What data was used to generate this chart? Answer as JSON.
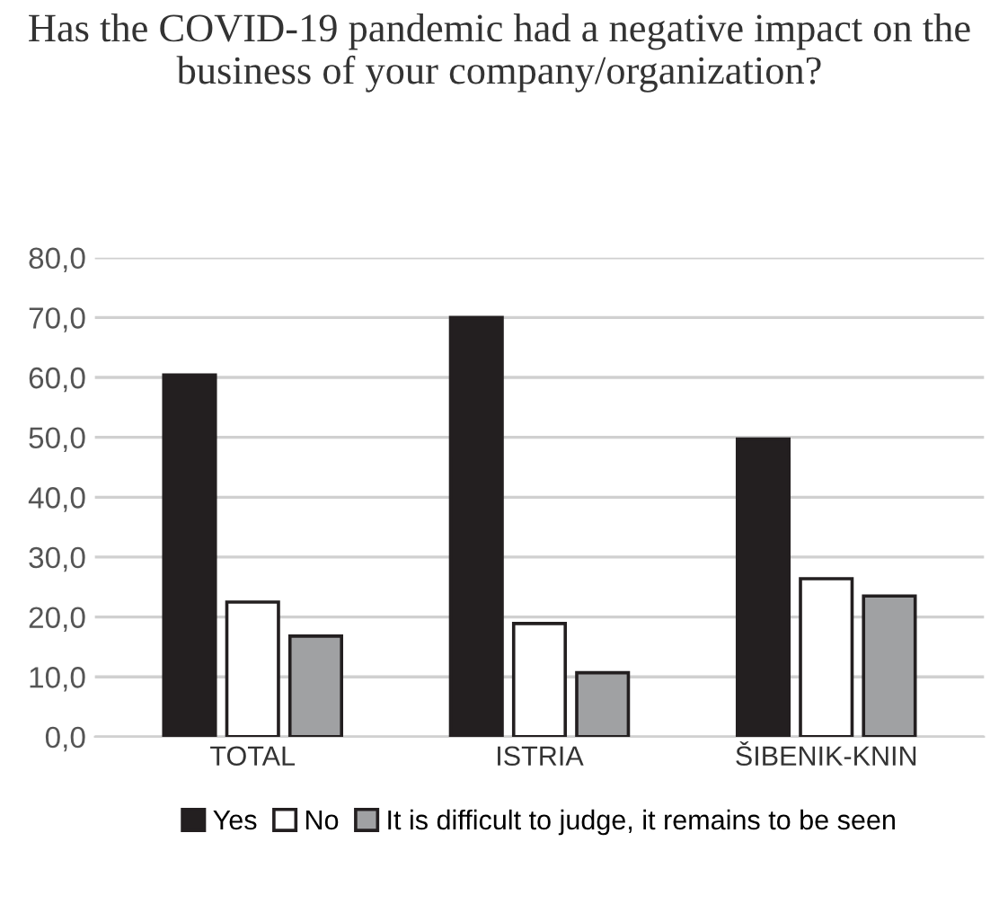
{
  "chart_data": {
    "type": "bar",
    "title": "Has the COVID-19 pandemic had a negative impact on the business of your company/organization?",
    "categories": [
      "TOTAL",
      "ISTRIA",
      "ŠIBENIK-KNIN"
    ],
    "series": [
      {
        "name": "Yes",
        "color": "#231f20",
        "values": [
          60.4,
          70.0,
          49.7
        ]
      },
      {
        "name": "No",
        "color": "#ffffff",
        "values": [
          22.5,
          18.9,
          26.4
        ]
      },
      {
        "name": "It is difficult to judge, it remains to be seen",
        "color": "#a0a1a3",
        "values": [
          16.8,
          10.7,
          23.5
        ]
      }
    ],
    "ylim": [
      0,
      80
    ],
    "yticks": [
      {
        "value": 0,
        "label": "0,0"
      },
      {
        "value": 10,
        "label": "10,0"
      },
      {
        "value": 20,
        "label": "20,0"
      },
      {
        "value": 30,
        "label": "30,0"
      },
      {
        "value": 40,
        "label": "40,0"
      },
      {
        "value": 50,
        "label": "50,0"
      },
      {
        "value": 60,
        "label": "60,0"
      },
      {
        "value": 70,
        "label": "70,0"
      },
      {
        "value": 80,
        "label": "80,0"
      }
    ],
    "grid": "y",
    "legend": "bottom"
  }
}
